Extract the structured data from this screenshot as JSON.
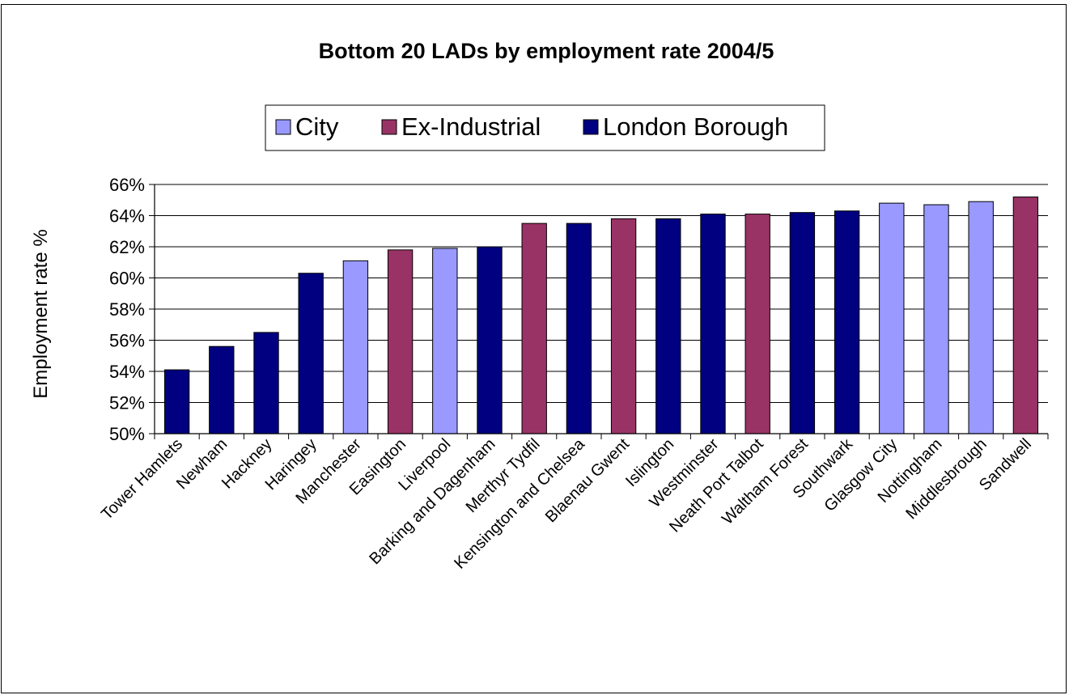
{
  "chart_data": {
    "type": "bar",
    "title": "Bottom 20 LADs by employment rate 2004/5",
    "xlabel": "",
    "ylabel": "Employment rate %",
    "ylim": [
      0.5,
      0.66
    ],
    "ytick_step": 0.02,
    "grid": true,
    "legend_placement": "top-center",
    "legend": [
      {
        "name": "City",
        "color": "#9999ff"
      },
      {
        "name": "Ex-Industrial",
        "color": "#993366"
      },
      {
        "name": "London Borough",
        "color": "#000080"
      }
    ],
    "categories": [
      "Tower Hamlets",
      "Newham",
      "Hackney",
      "Haringey",
      "Manchester",
      "Easington",
      "Liverpool",
      "Barking and Dagenham",
      "Merthyr Tydfil",
      "Kensington and Chelsea",
      "Blaenau Gwent",
      "Islington",
      "Westminster",
      "Neath Port Talbot",
      "Waltham Forest",
      "Southwark",
      "Glasgow City",
      "Nottingham",
      "Middlesbrough",
      "Sandwell"
    ],
    "groups": [
      "London Borough",
      "London Borough",
      "London Borough",
      "London Borough",
      "City",
      "Ex-Industrial",
      "City",
      "London Borough",
      "Ex-Industrial",
      "London Borough",
      "Ex-Industrial",
      "London Borough",
      "London Borough",
      "Ex-Industrial",
      "London Borough",
      "London Borough",
      "City",
      "City",
      "City",
      "Ex-Industrial"
    ],
    "values": [
      0.541,
      0.556,
      0.565,
      0.603,
      0.611,
      0.618,
      0.619,
      0.62,
      0.635,
      0.635,
      0.638,
      0.638,
      0.641,
      0.641,
      0.642,
      0.643,
      0.648,
      0.647,
      0.649,
      0.652
    ]
  }
}
